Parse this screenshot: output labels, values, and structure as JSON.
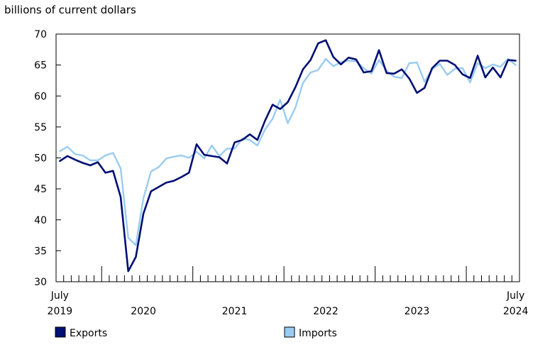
{
  "chart_data": {
    "type": "line",
    "ylabel": "billions of current dollars",
    "ylim": [
      30,
      70
    ],
    "y_ticks": [
      "30",
      "35",
      "40",
      "45",
      "50",
      "55",
      "60",
      "65",
      "70"
    ],
    "x_start": "2019-07",
    "x_end": "2024-07",
    "x_labels": [
      {
        "month": "2019-07",
        "line1": "July",
        "line2": "2019"
      },
      {
        "month": "2020-06",
        "line1": "",
        "line2": "2020"
      },
      {
        "month": "2021-06",
        "line1": "",
        "line2": "2021"
      },
      {
        "month": "2022-06",
        "line1": "",
        "line2": "2022"
      },
      {
        "month": "2023-06",
        "line1": "",
        "line2": "2023"
      },
      {
        "month": "2024-07",
        "line1": "July",
        "line2": "2024"
      }
    ],
    "series": [
      {
        "name": "Exports",
        "color": "#000f73",
        "values": [
          49.5,
          50.3,
          49.7,
          49.2,
          48.8,
          49.3,
          47.6,
          47.9,
          43.7,
          31.7,
          34.0,
          41.0,
          44.6,
          45.3,
          46.0,
          46.3,
          46.9,
          47.6,
          52.2,
          50.5,
          50.3,
          50.1,
          49.1,
          52.5,
          52.9,
          53.8,
          52.9,
          56.0,
          58.6,
          57.9,
          59.0,
          61.4,
          64.3,
          65.8,
          68.5,
          69.0,
          66.3,
          65.1,
          66.2,
          65.9,
          63.8,
          64.0,
          67.4,
          63.7,
          63.6,
          64.3,
          62.8,
          60.5,
          61.3,
          64.5,
          65.7,
          65.7,
          65.0,
          63.5,
          62.9,
          66.5,
          63.0,
          64.6,
          63.0,
          65.8,
          65.7
        ]
      },
      {
        "name": "Imports",
        "color": "#99ccf0",
        "values": [
          51.1,
          51.8,
          50.6,
          50.4,
          49.6,
          49.6,
          50.4,
          50.8,
          48.3,
          37.1,
          35.9,
          43.5,
          47.8,
          48.5,
          49.9,
          50.2,
          50.4,
          50.0,
          51.0,
          49.9,
          52.0,
          50.3,
          51.5,
          51.5,
          53.1,
          52.9,
          52.0,
          54.6,
          56.3,
          59.4,
          55.6,
          58.1,
          62.1,
          63.8,
          64.2,
          66.0,
          64.8,
          65.5,
          65.7,
          65.6,
          64.5,
          63.6,
          65.8,
          64.1,
          63.1,
          62.9,
          65.3,
          65.4,
          62.3,
          64.3,
          65.2,
          63.4,
          64.4,
          64.5,
          62.2,
          65.3,
          64.5,
          65.1,
          64.7,
          66.0,
          65.0
        ]
      }
    ],
    "legend_position": "bottom",
    "grid": false
  }
}
